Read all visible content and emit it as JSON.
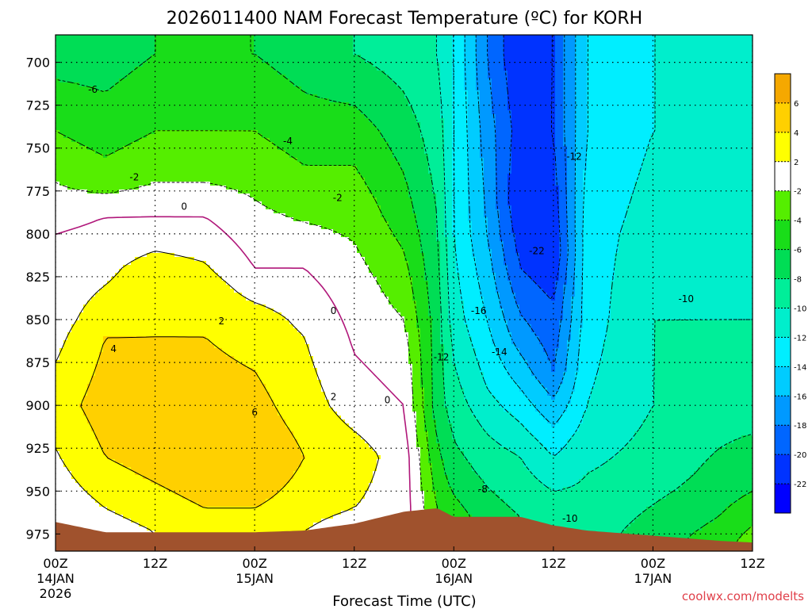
{
  "chart_data": {
    "type": "heatmap",
    "title": "2026011400 NAM Forecast Temperature (ºC) for KORH",
    "xlabel": "Forecast Time (UTC)",
    "ylabel": "",
    "credit": "coolwx.com/modelts",
    "x_unit": "hours since 2026011400",
    "xlim": [
      0,
      84
    ],
    "ylim": [
      985,
      684
    ],
    "y_ticks": [
      700,
      725,
      750,
      775,
      800,
      825,
      850,
      875,
      900,
      925,
      950,
      975
    ],
    "x_ticks": [
      {
        "hour": 0,
        "line1": "00Z",
        "line2": "14JAN",
        "line3": "2026"
      },
      {
        "hour": 12,
        "line1": "12Z",
        "line2": "",
        "line3": ""
      },
      {
        "hour": 24,
        "line1": "00Z",
        "line2": "15JAN",
        "line3": ""
      },
      {
        "hour": 36,
        "line1": "12Z",
        "line2": "",
        "line3": ""
      },
      {
        "hour": 48,
        "line1": "00Z",
        "line2": "16JAN",
        "line3": ""
      },
      {
        "hour": 60,
        "line1": "12Z",
        "line2": "",
        "line3": ""
      },
      {
        "hour": 72,
        "line1": "00Z",
        "line2": "17JAN",
        "line3": ""
      },
      {
        "hour": 84,
        "line1": "12Z",
        "line2": "",
        "line3": ""
      }
    ],
    "colorbar": {
      "labels": [
        "6",
        "4",
        "2",
        "-2",
        "-4",
        "-6",
        "-8",
        "-10",
        "-12",
        "-14",
        "-16",
        "-18",
        "-20",
        "-22"
      ],
      "colors": [
        "#f5a800",
        "#ffd000",
        "#ffff00",
        "#ffffff",
        "#55ee00",
        "#19dd19",
        "#00dd55",
        "#00ee99",
        "#00eecc",
        "#00eeff",
        "#00ccff",
        "#0099ff",
        "#0066ff",
        "#0033ff",
        "#0000ff"
      ]
    },
    "levels": [
      -22,
      -20,
      -18,
      -16,
      -14,
      -12,
      -10,
      -8,
      -6,
      -4,
      -2,
      2,
      4,
      6
    ],
    "freezing_line": 0,
    "columns": [
      {
        "hour": 0,
        "surface": 968,
        "temps": [
          [
            695,
            -7
          ],
          [
            740,
            -4
          ],
          [
            770,
            -2
          ],
          [
            800,
            0
          ],
          [
            850,
            1
          ],
          [
            900,
            3
          ],
          [
            925,
            2
          ],
          [
            950,
            1
          ],
          [
            968,
            0
          ]
        ]
      },
      {
        "hour": 6,
        "surface": 974,
        "temps": [
          [
            695,
            -7
          ],
          [
            740,
            -5
          ],
          [
            770,
            -3
          ],
          [
            790,
            0
          ],
          [
            830,
            2
          ],
          [
            860,
            4
          ],
          [
            900,
            5
          ],
          [
            930,
            4
          ],
          [
            960,
            2
          ],
          [
            974,
            1
          ]
        ]
      },
      {
        "hour": 12,
        "surface": 974,
        "temps": [
          [
            695,
            -6
          ],
          [
            740,
            -4
          ],
          [
            770,
            -2
          ],
          [
            790,
            0
          ],
          [
            820,
            3
          ],
          [
            860,
            4
          ],
          [
            900,
            5
          ],
          [
            930,
            5
          ],
          [
            960,
            3
          ],
          [
            974,
            2
          ]
        ]
      },
      {
        "hour": 18,
        "surface": 974,
        "temps": [
          [
            695,
            -6
          ],
          [
            740,
            -4
          ],
          [
            770,
            -2
          ],
          [
            790,
            0
          ],
          [
            830,
            3
          ],
          [
            860,
            4
          ],
          [
            900,
            5
          ],
          [
            930,
            6
          ],
          [
            960,
            4
          ],
          [
            974,
            3
          ]
        ]
      },
      {
        "hour": 24,
        "surface": 974,
        "temps": [
          [
            695,
            -6
          ],
          [
            740,
            -4
          ],
          [
            780,
            -2
          ],
          [
            820,
            0
          ],
          [
            850,
            3
          ],
          [
            880,
            4
          ],
          [
            910,
            5
          ],
          [
            930,
            6
          ],
          [
            960,
            4
          ],
          [
            974,
            3
          ]
        ]
      },
      {
        "hour": 30,
        "surface": 973,
        "temps": [
          [
            695,
            -7
          ],
          [
            740,
            -5
          ],
          [
            780,
            -3
          ],
          [
            820,
            0
          ],
          [
            860,
            2
          ],
          [
            900,
            3
          ],
          [
            930,
            4
          ],
          [
            960,
            3
          ],
          [
            973,
            2
          ]
        ]
      },
      {
        "hour": 36,
        "surface": 969,
        "temps": [
          [
            695,
            -8
          ],
          [
            740,
            -5
          ],
          [
            780,
            -3
          ],
          [
            830,
            -1
          ],
          [
            870,
            0
          ],
          [
            900,
            1
          ],
          [
            930,
            3
          ],
          [
            960,
            2
          ],
          [
            969,
            1
          ]
        ]
      },
      {
        "hour": 42,
        "surface": 962,
        "temps": [
          [
            695,
            -9
          ],
          [
            740,
            -7
          ],
          [
            790,
            -5
          ],
          [
            830,
            -3
          ],
          [
            870,
            -1
          ],
          [
            900,
            0
          ],
          [
            930,
            1
          ],
          [
            962,
            1
          ]
        ]
      },
      {
        "hour": 46,
        "surface": 960,
        "temps": [
          [
            695,
            -10
          ],
          [
            740,
            -9
          ],
          [
            790,
            -8
          ],
          [
            850,
            -7
          ],
          [
            900,
            -7
          ],
          [
            940,
            -5
          ],
          [
            960,
            -4
          ]
        ]
      },
      {
        "hour": 48,
        "surface": 965,
        "temps": [
          [
            695,
            -12
          ],
          [
            740,
            -12
          ],
          [
            800,
            -12
          ],
          [
            850,
            -11
          ],
          [
            900,
            -9
          ],
          [
            940,
            -7
          ],
          [
            965,
            -5
          ]
        ]
      },
      {
        "hour": 52,
        "surface": 965,
        "temps": [
          [
            695,
            -18
          ],
          [
            740,
            -17
          ],
          [
            800,
            -16
          ],
          [
            850,
            -14
          ],
          [
            890,
            -12
          ],
          [
            930,
            -9
          ],
          [
            965,
            -7
          ]
        ]
      },
      {
        "hour": 56,
        "surface": 965,
        "temps": [
          [
            695,
            -22
          ],
          [
            740,
            -21
          ],
          [
            780,
            -22
          ],
          [
            820,
            -20
          ],
          [
            860,
            -17
          ],
          [
            890,
            -14
          ],
          [
            930,
            -10
          ],
          [
            965,
            -8
          ]
        ]
      },
      {
        "hour": 60,
        "surface": 970,
        "temps": [
          [
            695,
            -20
          ],
          [
            740,
            -20
          ],
          [
            780,
            -21
          ],
          [
            810,
            -22
          ],
          [
            840,
            -20
          ],
          [
            880,
            -18
          ],
          [
            920,
            -13
          ],
          [
            950,
            -10
          ],
          [
            970,
            -9
          ]
        ]
      },
      {
        "hour": 64,
        "surface": 973,
        "temps": [
          [
            695,
            -14
          ],
          [
            740,
            -14
          ],
          [
            800,
            -13
          ],
          [
            850,
            -13
          ],
          [
            900,
            -12
          ],
          [
            940,
            -10
          ],
          [
            973,
            -9
          ]
        ]
      },
      {
        "hour": 72,
        "surface": 976,
        "temps": [
          [
            695,
            -12
          ],
          [
            740,
            -12
          ],
          [
            800,
            -11
          ],
          [
            850,
            -10
          ],
          [
            900,
            -10
          ],
          [
            940,
            -9
          ],
          [
            976,
            -7
          ]
        ]
      },
      {
        "hour": 80,
        "surface": 979,
        "temps": [
          [
            695,
            -12
          ],
          [
            740,
            -12
          ],
          [
            800,
            -11
          ],
          [
            850,
            -10
          ],
          [
            900,
            -9
          ],
          [
            950,
            -7
          ],
          [
            979,
            -5
          ]
        ]
      },
      {
        "hour": 84,
        "surface": 980,
        "temps": [
          [
            695,
            -12
          ],
          [
            740,
            -11
          ],
          [
            800,
            -11
          ],
          [
            850,
            -10
          ],
          [
            900,
            -9
          ],
          [
            950,
            -6
          ],
          [
            980,
            -3
          ]
        ]
      }
    ],
    "contour_labels": [
      {
        "hour": 9.5,
        "pressure": 767,
        "text": "-2"
      },
      {
        "hour": 15.5,
        "pressure": 784,
        "text": "0"
      },
      {
        "hour": 20,
        "pressure": 851,
        "text": "2"
      },
      {
        "hour": 7,
        "pressure": 867,
        "text": "4"
      },
      {
        "hour": 24,
        "pressure": 904,
        "text": "6"
      },
      {
        "hour": 4.5,
        "pressure": 716,
        "text": "-6"
      },
      {
        "hour": 28,
        "pressure": 746,
        "text": "-4"
      },
      {
        "hour": 34,
        "pressure": 779,
        "text": "-2"
      },
      {
        "hour": 33.5,
        "pressure": 845,
        "text": "0"
      },
      {
        "hour": 33.5,
        "pressure": 895,
        "text": "2"
      },
      {
        "hour": 40,
        "pressure": 897,
        "text": "0"
      },
      {
        "hour": 46.5,
        "pressure": 872,
        "text": "-12"
      },
      {
        "hour": 51,
        "pressure": 845,
        "text": "-16"
      },
      {
        "hour": 53.5,
        "pressure": 869,
        "text": "-14"
      },
      {
        "hour": 58,
        "pressure": 810,
        "text": "-22"
      },
      {
        "hour": 62.5,
        "pressure": 755,
        "text": "-12"
      },
      {
        "hour": 51.5,
        "pressure": 949,
        "text": "-8"
      },
      {
        "hour": 62,
        "pressure": 966,
        "text": "-10"
      },
      {
        "hour": 76,
        "pressure": 838,
        "text": "-10"
      }
    ]
  }
}
